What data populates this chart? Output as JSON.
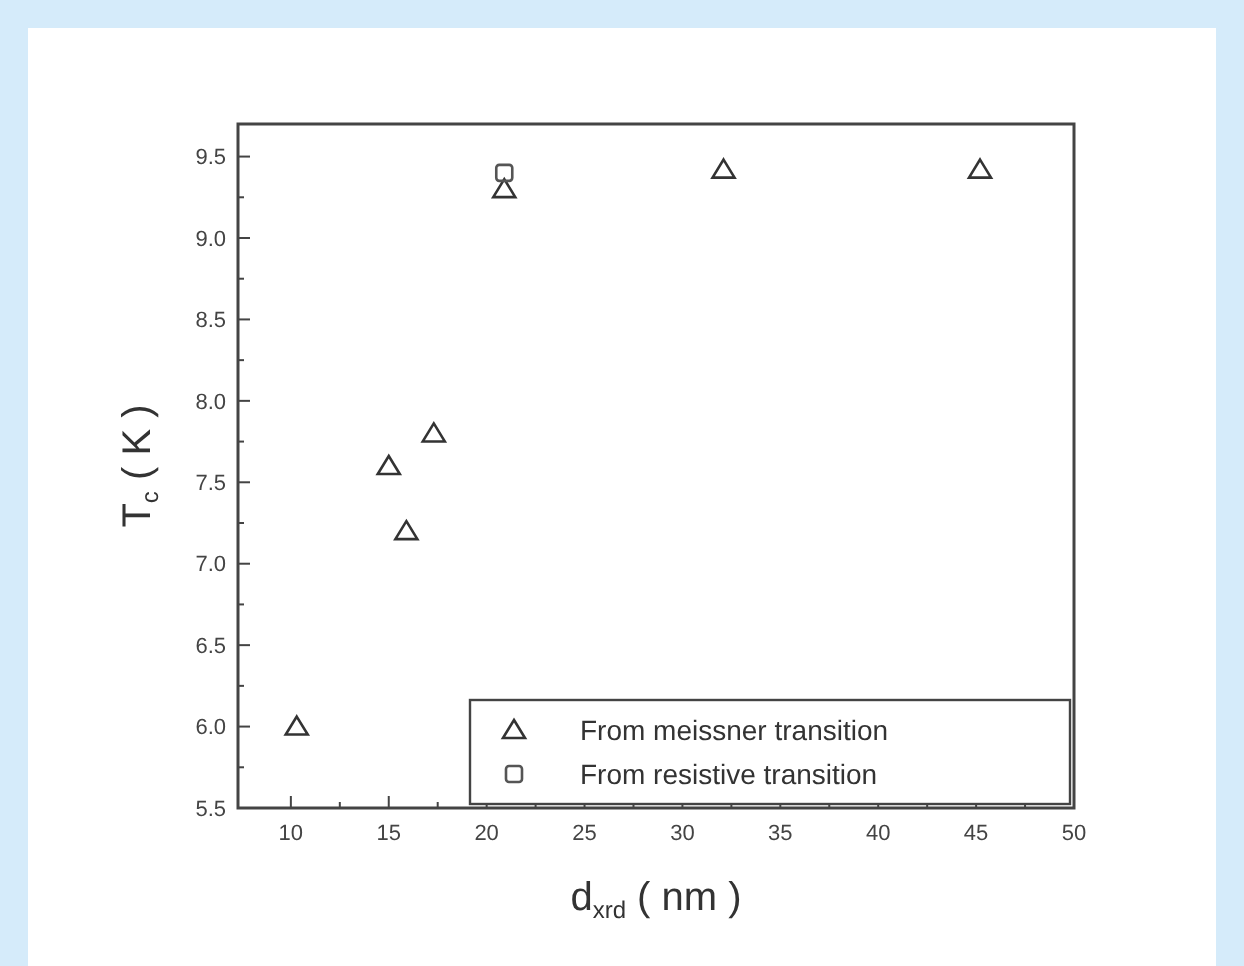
{
  "chart_data": {
    "type": "scatter",
    "xlabel": "d$_{xrd}$ ( nm )",
    "ylabel": "T$_{c}$ ( K )",
    "xlim": [
      7.3,
      50
    ],
    "xticks": [
      10,
      15,
      20,
      25,
      30,
      35,
      40,
      45,
      50
    ],
    "ylim": [
      5.5,
      9.7
    ],
    "yticks": [
      5.5,
      {
        "value": 6,
        "label": "6.0"
      },
      6.5,
      {
        "value": 7,
        "label": "7.0"
      },
      7.5,
      {
        "value": 8,
        "label": "8.0"
      },
      8.5,
      {
        "value": 9,
        "label": "9.0"
      },
      9.5
    ],
    "legend": "bottom right",
    "grid": false,
    "series": [
      {
        "name": "From meissner transition",
        "color": "#333333",
        "marker": "triangle",
        "x": [
          10.3,
          15,
          15.9,
          17.3,
          20.9,
          32.1,
          45.2
        ],
        "values": [
          6.0,
          7.6,
          7.2,
          7.8,
          9.3,
          9.42,
          9.42
        ]
      },
      {
        "name": "From resistive transition",
        "color": "#555555",
        "marker": "square",
        "x": [
          20.9
        ],
        "values": [
          9.4
        ]
      }
    ]
  }
}
